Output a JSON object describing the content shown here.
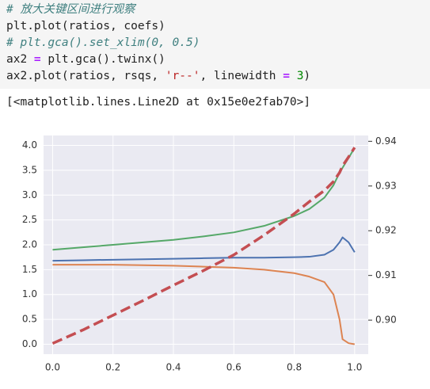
{
  "code": {
    "lines": [
      [
        "# 放大关键区间进行观察"
      ],
      [
        "plt.plot(ratios, coefs)"
      ],
      [
        "# plt.gca().set_xlim(0, 0.5)"
      ],
      [
        "ax2 ",
        "=",
        " plt.gca().twinx()"
      ],
      [
        "ax2.plot(ratios, rsqs, ",
        "'r--'",
        ", linewidth ",
        "=",
        " ",
        "3",
        ")"
      ]
    ]
  },
  "output": "[<matplotlib.lines.Line2D at 0x15e0e2fab70>]",
  "chart_data": {
    "type": "line",
    "grid": true,
    "background": "#eaeaf2",
    "x": [
      0,
      0.1,
      0.2,
      0.3,
      0.4,
      0.5,
      0.6,
      0.7,
      0.8,
      0.85,
      0.9,
      0.93,
      0.95,
      0.96,
      0.98,
      1.0
    ],
    "series": [
      {
        "color": "#55a868",
        "values": [
          1.9,
          1.95,
          2.0,
          2.05,
          2.1,
          2.17,
          2.25,
          2.38,
          2.58,
          2.72,
          2.95,
          3.2,
          3.45,
          3.55,
          3.75,
          3.95
        ]
      },
      {
        "color": "#4c72b0",
        "values": [
          1.68,
          1.69,
          1.7,
          1.71,
          1.72,
          1.73,
          1.74,
          1.74,
          1.75,
          1.76,
          1.8,
          1.9,
          2.05,
          2.15,
          2.05,
          1.85
        ]
      },
      {
        "color": "#dd8452",
        "values": [
          1.6,
          1.6,
          1.6,
          1.59,
          1.58,
          1.56,
          1.54,
          1.5,
          1.43,
          1.36,
          1.25,
          1.0,
          0.5,
          0.1,
          0.02,
          0.0
        ]
      },
      {
        "color": "#c44e52",
        "axis": "y2",
        "dashed": true,
        "values": [
          0.8948,
          0.8978,
          0.9011,
          0.9044,
          0.9078,
          0.9111,
          0.9146,
          0.919,
          0.9238,
          0.9265,
          0.929,
          0.931,
          0.933,
          0.9345,
          0.9365,
          0.9386
        ]
      }
    ],
    "xlim": [
      -0.03,
      1.045
    ],
    "xticks": [
      {
        "value": 0,
        "label": "0.0"
      },
      0.2,
      0.4,
      0.6,
      0.8,
      {
        "value": 1,
        "label": "1.0"
      }
    ],
    "ylim": [
      -0.2,
      4.2
    ],
    "yticks": [
      {
        "value": 0,
        "label": "0.0"
      },
      0.5,
      {
        "value": 1,
        "label": "1.0"
      },
      1.5,
      {
        "value": 2,
        "label": "2.0"
      },
      2.5,
      {
        "value": 3,
        "label": "3.0"
      },
      3.5,
      {
        "value": 4,
        "label": "4.0"
      }
    ],
    "y2lim": [
      0.8924,
      0.9413
    ],
    "y2ticks": [
      {
        "value": 0.9,
        "label": "0.90"
      },
      0.91,
      0.92,
      0.93,
      0.94
    ]
  }
}
